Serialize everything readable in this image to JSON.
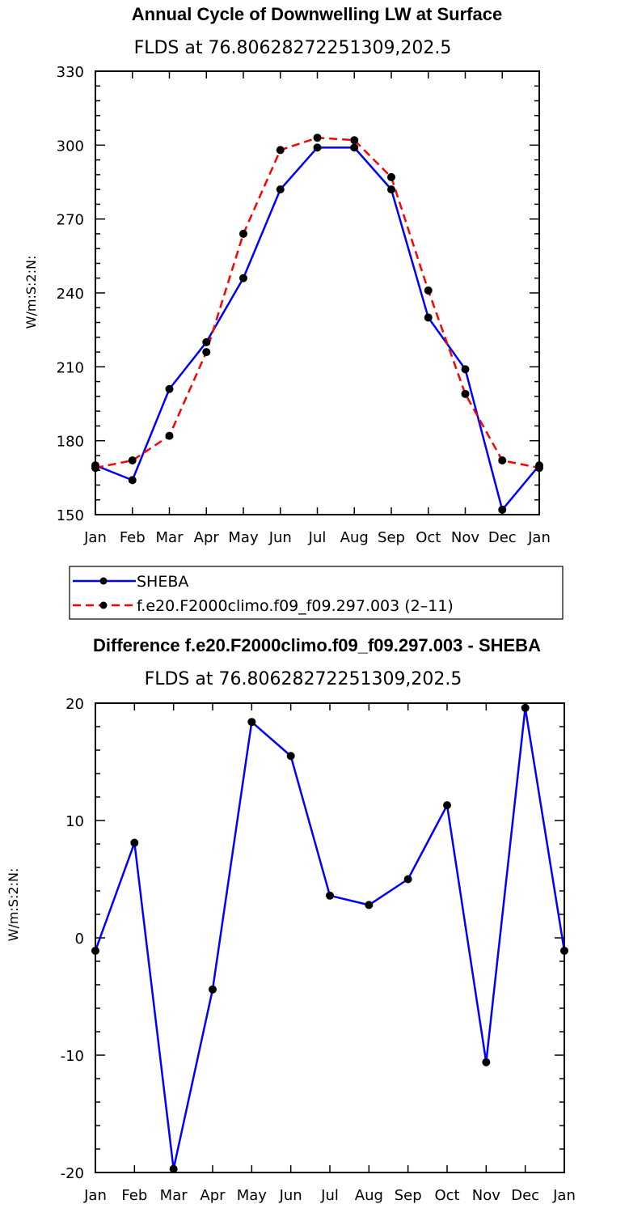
{
  "chart_data": [
    {
      "type": "line",
      "title": "Annual Cycle of Downwelling LW at Surface",
      "subtitle": "FLDS at 76.80628272251309,202.5",
      "xlabel": "",
      "ylabel": "W/m:S:2:N:",
      "categories": [
        "Jan",
        "Feb",
        "Mar",
        "Apr",
        "May",
        "Jun",
        "Jul",
        "Aug",
        "Sep",
        "Oct",
        "Nov",
        "Dec",
        "Jan"
      ],
      "ylim": [
        150,
        330
      ],
      "yticks": [
        150,
        180,
        210,
        240,
        270,
        300,
        330
      ],
      "series": [
        {
          "name": "SHEBA",
          "color": "#0000ff",
          "dash": "solid",
          "values": [
            170,
            164,
            201,
            220,
            246,
            282,
            299,
            299,
            282,
            230,
            209,
            152,
            170
          ]
        },
        {
          "name": "f.e20.F2000climo.f09_f09.297.003 (2–11)",
          "color": "#ff0000",
          "dash": "dashed",
          "values": [
            169,
            172,
            182,
            216,
            264,
            298,
            303,
            302,
            287,
            241,
            199,
            172,
            169
          ]
        }
      ],
      "legend": "bottom-left"
    },
    {
      "type": "line",
      "title": "Difference f.e20.F2000climo.f09_f09.297.003 - SHEBA",
      "subtitle": "FLDS at 76.80628272251309,202.5",
      "xlabel": "",
      "ylabel": "W/m:S:2:N:",
      "categories": [
        "Jan",
        "Feb",
        "Mar",
        "Apr",
        "May",
        "Jun",
        "Jul",
        "Aug",
        "Sep",
        "Oct",
        "Nov",
        "Dec",
        "Jan"
      ],
      "ylim": [
        -20,
        20
      ],
      "yticks": [
        -20,
        -10,
        0,
        10,
        20
      ],
      "series": [
        {
          "color": "#0000ff",
          "dash": "solid",
          "values": [
            -1.1,
            8.1,
            -19.7,
            -4.4,
            18.4,
            15.5,
            3.6,
            2.8,
            5.0,
            11.3,
            -10.6,
            19.6,
            -1.1
          ]
        }
      ]
    }
  ]
}
